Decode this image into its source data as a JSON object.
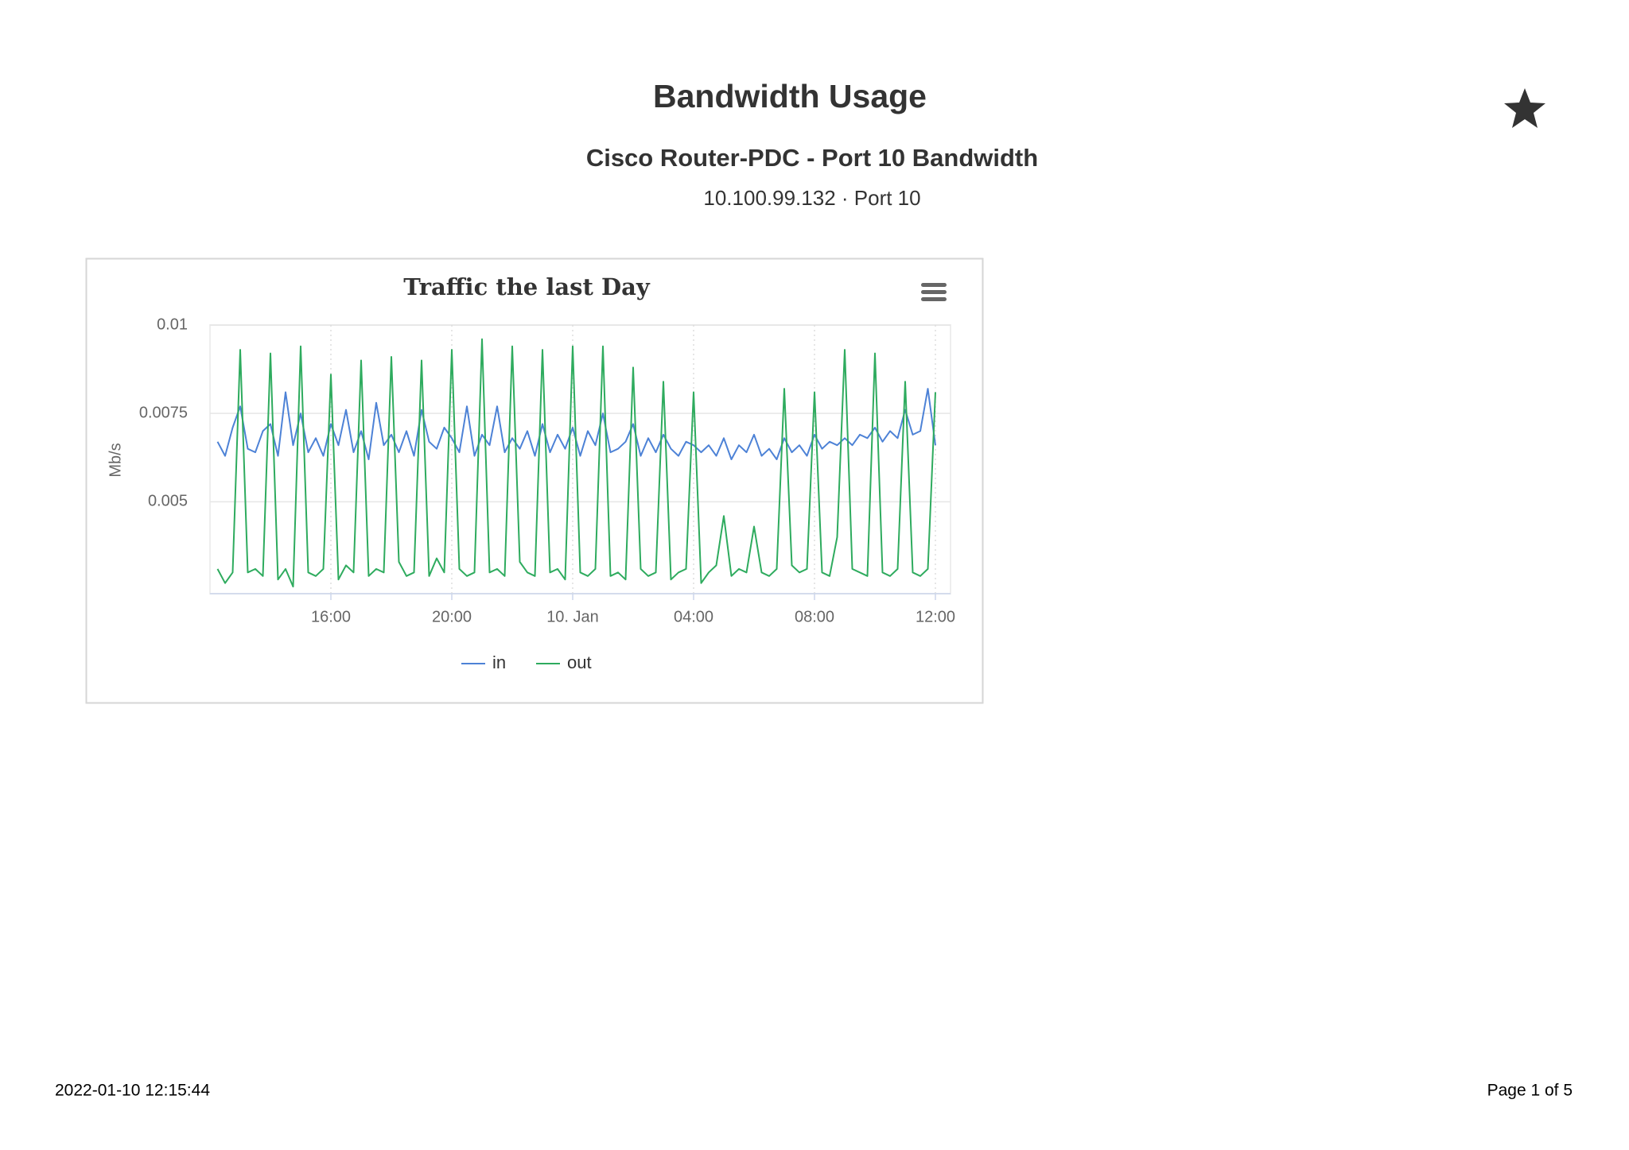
{
  "header": {
    "title": "Bandwidth Usage",
    "subtitle": "Cisco Router-PDC - Port 10 Bandwidth",
    "detail": "10.100.99.132 · Port 10"
  },
  "footer": {
    "timestamp": "2022-01-10 12:15:44",
    "page": "Page 1 of 5"
  },
  "chart_data": {
    "type": "line",
    "title": "Traffic the last Day",
    "y_label": "Mb/s",
    "x": [
      "9. Jan 12:15",
      "9. Jan 12:30",
      "9. Jan 12:45",
      "9. Jan 13:00",
      "9. Jan 13:15",
      "9. Jan 13:30",
      "9. Jan 13:45",
      "9. Jan 14:00",
      "9. Jan 14:15",
      "9. Jan 14:30",
      "9. Jan 14:45",
      "9. Jan 15:00",
      "9. Jan 15:15",
      "9. Jan 15:30",
      "9. Jan 15:45",
      "9. Jan 16:00",
      "9. Jan 16:15",
      "9. Jan 16:30",
      "9. Jan 16:45",
      "9. Jan 17:00",
      "9. Jan 17:15",
      "9. Jan 17:30",
      "9. Jan 17:45",
      "9. Jan 18:00",
      "9. Jan 18:15",
      "9. Jan 18:30",
      "9. Jan 18:45",
      "9. Jan 19:00",
      "9. Jan 19:15",
      "9. Jan 19:30",
      "9. Jan 19:45",
      "9. Jan 20:00",
      "9. Jan 20:15",
      "9. Jan 20:30",
      "9. Jan 20:45",
      "9. Jan 21:00",
      "9. Jan 21:15",
      "9. Jan 21:30",
      "9. Jan 21:45",
      "9. Jan 22:00",
      "9. Jan 22:15",
      "9. Jan 22:30",
      "9. Jan 22:45",
      "9. Jan 23:00",
      "9. Jan 23:15",
      "9. Jan 23:30",
      "9. Jan 23:45",
      "10. Jan 00:00",
      "10. Jan 00:15",
      "10. Jan 00:30",
      "10. Jan 00:45",
      "10. Jan 01:00",
      "10. Jan 01:15",
      "10. Jan 01:30",
      "10. Jan 01:45",
      "10. Jan 02:00",
      "10. Jan 02:15",
      "10. Jan 02:30",
      "10. Jan 02:45",
      "10. Jan 03:00",
      "10. Jan 03:15",
      "10. Jan 03:30",
      "10. Jan 03:45",
      "10. Jan 04:00",
      "10. Jan 04:15",
      "10. Jan 04:30",
      "10. Jan 04:45",
      "10. Jan 05:00",
      "10. Jan 05:15",
      "10. Jan 05:30",
      "10. Jan 05:45",
      "10. Jan 06:00",
      "10. Jan 06:15",
      "10. Jan 06:30",
      "10. Jan 06:45",
      "10. Jan 07:00",
      "10. Jan 07:15",
      "10. Jan 07:30",
      "10. Jan 07:45",
      "10. Jan 08:00",
      "10. Jan 08:15",
      "10. Jan 08:30",
      "10. Jan 08:45",
      "10. Jan 09:00",
      "10. Jan 09:15",
      "10. Jan 09:30",
      "10. Jan 09:45",
      "10. Jan 10:00",
      "10. Jan 10:15",
      "10. Jan 10:30",
      "10. Jan 10:45",
      "10. Jan 11:00",
      "10. Jan 11:15",
      "10. Jan 11:30",
      "10. Jan 11:45",
      "10. Jan 12:00"
    ],
    "series": [
      {
        "name": "in",
        "color": "#4d82d6",
        "values": [
          0.0067,
          0.0063,
          0.0071,
          0.0077,
          0.0065,
          0.0064,
          0.007,
          0.0072,
          0.0063,
          0.0081,
          0.0066,
          0.0075,
          0.0064,
          0.0068,
          0.0063,
          0.0072,
          0.0066,
          0.0076,
          0.0064,
          0.007,
          0.0062,
          0.0078,
          0.0066,
          0.0069,
          0.0064,
          0.007,
          0.0063,
          0.0076,
          0.0067,
          0.0065,
          0.0071,
          0.0068,
          0.0064,
          0.0077,
          0.0063,
          0.0069,
          0.0066,
          0.0077,
          0.0064,
          0.0068,
          0.0065,
          0.007,
          0.0063,
          0.0072,
          0.0064,
          0.0069,
          0.0065,
          0.0071,
          0.0063,
          0.007,
          0.0066,
          0.0075,
          0.0064,
          0.0065,
          0.0067,
          0.0072,
          0.0063,
          0.0068,
          0.0064,
          0.0069,
          0.0065,
          0.0063,
          0.0067,
          0.0066,
          0.0064,
          0.0066,
          0.0063,
          0.0068,
          0.0062,
          0.0066,
          0.0064,
          0.0069,
          0.0063,
          0.0065,
          0.0062,
          0.0068,
          0.0064,
          0.0066,
          0.0063,
          0.0069,
          0.0065,
          0.0067,
          0.0066,
          0.0068,
          0.0066,
          0.0069,
          0.0068,
          0.0071,
          0.0067,
          0.007,
          0.0068,
          0.0076,
          0.0069,
          0.007,
          0.0082,
          0.0066
        ]
      },
      {
        "name": "out",
        "color": "#2eab5e",
        "values": [
          0.0031,
          0.0027,
          0.003,
          0.0093,
          0.003,
          0.0031,
          0.0029,
          0.0092,
          0.0028,
          0.0031,
          0.0026,
          0.0094,
          0.003,
          0.0029,
          0.0031,
          0.0086,
          0.0028,
          0.0032,
          0.003,
          0.009,
          0.0029,
          0.0031,
          0.003,
          0.0091,
          0.0033,
          0.0029,
          0.003,
          0.009,
          0.0029,
          0.0034,
          0.003,
          0.0093,
          0.0031,
          0.0029,
          0.003,
          0.0096,
          0.003,
          0.0031,
          0.0029,
          0.0094,
          0.0033,
          0.003,
          0.0029,
          0.0093,
          0.003,
          0.0031,
          0.0028,
          0.0094,
          0.003,
          0.0029,
          0.0031,
          0.0094,
          0.0029,
          0.003,
          0.0028,
          0.0088,
          0.0031,
          0.0029,
          0.003,
          0.0084,
          0.0028,
          0.003,
          0.0031,
          0.0081,
          0.0027,
          0.003,
          0.0032,
          0.0046,
          0.0029,
          0.0031,
          0.003,
          0.0043,
          0.003,
          0.0029,
          0.0031,
          0.0082,
          0.0032,
          0.003,
          0.0031,
          0.0081,
          0.003,
          0.0029,
          0.004,
          0.0093,
          0.0031,
          0.003,
          0.0029,
          0.0092,
          0.003,
          0.0029,
          0.0031,
          0.0084,
          0.003,
          0.0029,
          0.0031,
          0.0081
        ]
      }
    ],
    "xlim": [
      "9. Jan 12:00",
      "10. Jan 12:30"
    ],
    "xticks": [
      {
        "value": "9. Jan 16:00",
        "label": "16:00"
      },
      {
        "value": "9. Jan 20:00",
        "label": "20:00"
      },
      {
        "value": "10. Jan 00:00",
        "label": "10. Jan"
      },
      {
        "value": "10. Jan 04:00",
        "label": "04:00"
      },
      {
        "value": "10. Jan 08:00",
        "label": "08:00"
      },
      {
        "value": "10. Jan 12:00",
        "label": "12:00"
      }
    ],
    "ylim": [
      0.0024,
      0.01
    ],
    "yticks": [
      0.005,
      0.0075,
      0.01
    ],
    "grid": true,
    "legend": "bottom"
  }
}
